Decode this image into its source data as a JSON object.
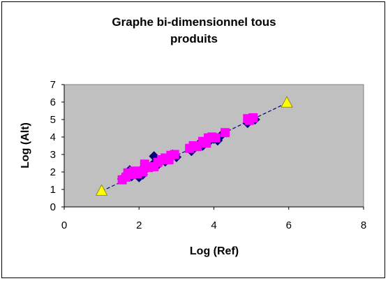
{
  "chart_data": {
    "type": "scatter",
    "title_lines": [
      "Graphe bi-dimensionnel tous",
      "produits"
    ],
    "xlabel": "Log (Ref)",
    "ylabel": "Log (Alt)",
    "xlim": [
      0,
      8
    ],
    "ylim": [
      0,
      7
    ],
    "x_ticks": [
      0,
      2,
      4,
      6,
      8
    ],
    "y_ticks": [
      0,
      1,
      2,
      3,
      4,
      5,
      6,
      7
    ],
    "plot_background": "#c0c0c0",
    "grid": false,
    "legend": "none",
    "series": [
      {
        "marker": "diamond",
        "color": "#000080",
        "points": [
          [
            1.55,
            1.6
          ],
          [
            1.7,
            1.95
          ],
          [
            1.75,
            2.1
          ],
          [
            1.8,
            1.75
          ],
          [
            1.85,
            2.0
          ],
          [
            1.95,
            1.9
          ],
          [
            2.0,
            1.7
          ],
          [
            2.05,
            2.1
          ],
          [
            2.1,
            1.85
          ],
          [
            2.2,
            2.2
          ],
          [
            2.3,
            2.3
          ],
          [
            2.4,
            2.5
          ],
          [
            2.4,
            2.9
          ],
          [
            2.5,
            2.4
          ],
          [
            2.6,
            2.7
          ],
          [
            2.7,
            2.6
          ],
          [
            2.8,
            2.9
          ],
          [
            2.9,
            3.0
          ],
          [
            3.0,
            2.85
          ],
          [
            3.4,
            3.2
          ],
          [
            3.6,
            3.6
          ],
          [
            3.7,
            3.5
          ],
          [
            3.8,
            3.75
          ],
          [
            3.9,
            3.8
          ],
          [
            4.0,
            3.9
          ],
          [
            4.1,
            3.8
          ],
          [
            4.2,
            4.1
          ],
          [
            4.9,
            4.8
          ],
          [
            5.0,
            5.05
          ],
          [
            5.1,
            5.0
          ]
        ]
      },
      {
        "marker": "square",
        "color": "#ff00ff",
        "points": [
          [
            1.55,
            1.55
          ],
          [
            1.65,
            1.7
          ],
          [
            1.7,
            1.95
          ],
          [
            1.8,
            1.85
          ],
          [
            1.85,
            2.05
          ],
          [
            1.95,
            1.9
          ],
          [
            2.05,
            2.05
          ],
          [
            2.1,
            2.0
          ],
          [
            2.15,
            2.45
          ],
          [
            2.25,
            2.25
          ],
          [
            2.4,
            2.3
          ],
          [
            2.5,
            2.55
          ],
          [
            2.6,
            2.7
          ],
          [
            2.7,
            2.8
          ],
          [
            2.8,
            2.7
          ],
          [
            2.85,
            2.95
          ],
          [
            2.95,
            3.0
          ],
          [
            3.35,
            3.35
          ],
          [
            3.45,
            3.5
          ],
          [
            3.55,
            3.45
          ],
          [
            3.7,
            3.75
          ],
          [
            3.8,
            3.65
          ],
          [
            3.85,
            3.95
          ],
          [
            3.95,
            4.0
          ],
          [
            4.05,
            3.95
          ],
          [
            4.3,
            4.25
          ],
          [
            4.9,
            5.05
          ],
          [
            4.95,
            4.95
          ],
          [
            5.05,
            5.1
          ]
        ]
      },
      {
        "marker": "triangle",
        "color": "#ffff00",
        "points": [
          [
            1.0,
            0.9
          ],
          [
            5.95,
            5.95
          ]
        ]
      }
    ],
    "trendline": {
      "style": "dashed",
      "color": "#000080",
      "points": [
        [
          1.0,
          0.9
        ],
        [
          5.95,
          5.95
        ]
      ]
    }
  }
}
